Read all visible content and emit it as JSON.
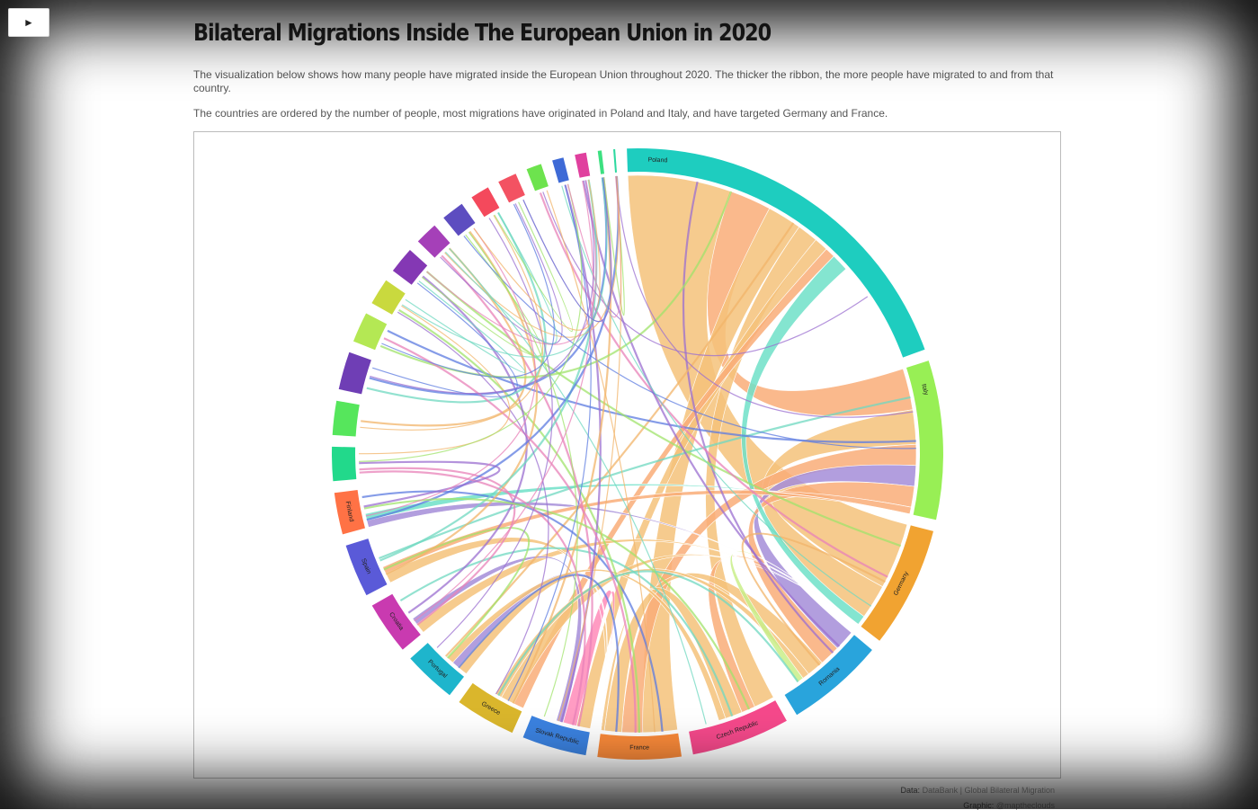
{
  "controls": {
    "play_label": "►"
  },
  "header": {
    "title": "Bilateral Migrations Inside The European Union in 2020",
    "description_1": "The visualization below shows how many people have migrated inside the European Union throughout 2020. The thicker the ribbon, the more people have migrated to and from that country.",
    "description_2": "The countries are ordered by the number of people, most migrations have originated in Poland and Italy, and have targeted Germany and France."
  },
  "footer": {
    "data_label": "Data:",
    "data_source": "DataBank | Global Bilateral Migration",
    "graphic_label": "Graphic:",
    "graphic_source": "@maptheclouds"
  },
  "chart_data": {
    "type": "chord",
    "groups": [
      {
        "name": "Poland",
        "value": 100,
        "color": "#1ecdbf"
      },
      {
        "name": "Italy",
        "value": 42,
        "color": "#98ef55"
      },
      {
        "name": "Germany",
        "value": 32,
        "color": "#f1a331"
      },
      {
        "name": "Romania",
        "value": 26,
        "color": "#29a4dc"
      },
      {
        "name": "Czech Republic",
        "value": 26,
        "color": "#f5498b"
      },
      {
        "name": "France",
        "value": 22,
        "color": "#fa8a3a"
      },
      {
        "name": "Slovak Republic",
        "value": 17,
        "color": "#3b82e0"
      },
      {
        "name": "Greece",
        "value": 16,
        "color": "#dab62c"
      },
      {
        "name": "Portugal",
        "value": 14,
        "color": "#1eb5cc"
      },
      {
        "name": "Croatia",
        "value": 14,
        "color": "#c93ab0"
      },
      {
        "name": "Spain",
        "value": 14,
        "color": "#5a5ad8"
      },
      {
        "name": "Finland",
        "value": 11,
        "color": "#ff7245"
      },
      {
        "name": "",
        "value": 9,
        "color": "#22d98b"
      },
      {
        "name": "",
        "value": 9,
        "color": "#56e65c"
      },
      {
        "name": "",
        "value": 10,
        "color": "#6f3eb5"
      },
      {
        "name": "",
        "value": 8,
        "color": "#b4e854"
      },
      {
        "name": "",
        "value": 7,
        "color": "#c9d93e"
      },
      {
        "name": "",
        "value": 7,
        "color": "#8438b4"
      },
      {
        "name": "",
        "value": 6,
        "color": "#a540b8"
      },
      {
        "name": "",
        "value": 6,
        "color": "#5d4dc0"
      },
      {
        "name": "",
        "value": 5,
        "color": "#f4495c"
      },
      {
        "name": "",
        "value": 5,
        "color": "#f35262"
      },
      {
        "name": "",
        "value": 4,
        "color": "#6de34e"
      },
      {
        "name": "",
        "value": 3,
        "color": "#3e6ad6"
      },
      {
        "name": "",
        "value": 3,
        "color": "#e0409e"
      },
      {
        "name": "",
        "value": 1,
        "color": "#3ce080"
      },
      {
        "name": "",
        "value": 0.5,
        "color": "#2ed9a0"
      }
    ],
    "flows": [
      {
        "source": "Poland",
        "target": "Germany",
        "value": 30,
        "color": "#f5c27a"
      },
      {
        "source": "Poland",
        "target": "Italy",
        "value": 12,
        "color": "#f9ad78"
      },
      {
        "source": "Poland",
        "target": "France",
        "value": 10,
        "color": "#f5c27a"
      },
      {
        "source": "Poland",
        "target": "Czech Republic",
        "value": 6,
        "color": "#f5c27a"
      },
      {
        "source": "Poland",
        "target": "Slovak Republic",
        "value": 4,
        "color": "#f5c27a"
      },
      {
        "source": "Poland",
        "target": "Greece",
        "value": 3,
        "color": "#f9ad78"
      },
      {
        "source": "Italy",
        "target": "Germany",
        "value": 10,
        "color": "#f5c27a"
      },
      {
        "source": "Italy",
        "target": "France",
        "value": 6,
        "color": "#f9ad78"
      },
      {
        "source": "Italy",
        "target": "Romania",
        "value": 6,
        "color": "#a58dd8"
      },
      {
        "source": "Romania",
        "target": "Italy",
        "value": 6,
        "color": "#f9ad78"
      },
      {
        "source": "Germany",
        "target": "Poland",
        "value": 5,
        "color": "#6fe0c8"
      },
      {
        "source": "Germany",
        "target": "Czech Republic",
        "value": 4,
        "color": "#f9ad78"
      },
      {
        "source": "Romania",
        "target": "France",
        "value": 5,
        "color": "#f5c27a"
      },
      {
        "source": "Czech Republic",
        "target": "France",
        "value": 5,
        "color": "#f5c27a"
      },
      {
        "source": "Slovak Republic",
        "target": "France",
        "value": 4,
        "color": "#ff8bb8"
      },
      {
        "source": "Greece",
        "target": "Germany",
        "value": 4,
        "color": "#f5c27a"
      },
      {
        "source": "Portugal",
        "target": "France",
        "value": 3,
        "color": "#f5c27a"
      },
      {
        "source": "Croatia",
        "target": "Germany",
        "value": 3,
        "color": "#f5c27a"
      },
      {
        "source": "Spain",
        "target": "France",
        "value": 3,
        "color": "#f5c27a"
      },
      {
        "source": "Finland",
        "target": "Germany",
        "value": 2,
        "color": "#a58dd8"
      },
      {
        "source": "France",
        "target": "Portugal",
        "value": 2,
        "color": "#a58dd8"
      },
      {
        "source": "Spain",
        "target": "Italy",
        "value": 2,
        "color": "#f9ad78"
      },
      {
        "source": "Croatia",
        "target": "Slovak Republic",
        "value": 2,
        "color": "#a58dd8"
      },
      {
        "source": "Greece",
        "target": "Romania",
        "value": 2,
        "color": "#f5c27a"
      },
      {
        "source": "Portugal",
        "target": "Czech Republic",
        "value": 2,
        "color": "#f5c27a"
      },
      {
        "source": "Finland",
        "target": "Italy",
        "value": 2,
        "color": "#6fe0c8"
      },
      {
        "source": "Romania",
        "target": "Germany",
        "value": 2,
        "color": "#c9ef8a"
      }
    ]
  }
}
